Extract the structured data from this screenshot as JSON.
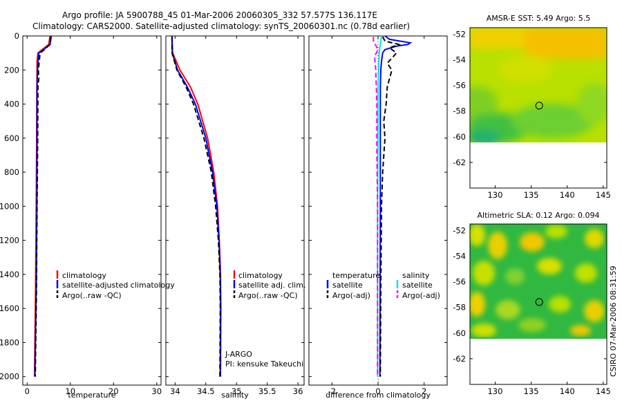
{
  "title_line1": "Argo profile: JA 5900788_45 01-Mar-2006 20060305_332 57.577S 136.117E",
  "title_line2": "Climatology: CARS2000. Satellite-adjusted climatology: synTS_20060301.nc (0.78d earlier)",
  "footer_note": "CSIRO 07-Mar-2006 08:31:59",
  "colors": {
    "climatology": "#ff0000",
    "satellite": "#0000ff",
    "argo": "#000000",
    "sal_satellite": "#00e5e5",
    "sal_argo": "#ff00ff"
  },
  "chart_data": [
    {
      "type": "line",
      "id": "temperature",
      "xlabel": "temperature",
      "ylabel": "",
      "xlim": [
        -1,
        31
      ],
      "ylim": [
        2050,
        0
      ],
      "xticks": [
        "0",
        "10",
        "20",
        "30"
      ],
      "yticks": [
        "0",
        "200",
        "400",
        "600",
        "800",
        "1000",
        "1200",
        "1400",
        "1600",
        "1800",
        "2000"
      ],
      "legend": [
        "climatology",
        "satellite-adjusted climatology",
        "Argo(..raw -QC)"
      ],
      "series": [
        {
          "name": "climatology",
          "depth": [
            0,
            50,
            80,
            100,
            150,
            200,
            300,
            600,
            1000,
            1500,
            2000
          ],
          "values": [
            5.3,
            5.0,
            3.5,
            2.5,
            2.3,
            2.3,
            2.25,
            2.2,
            2.1,
            1.95,
            1.7
          ]
        },
        {
          "name": "satellite-adjusted climatology",
          "depth": [
            0,
            50,
            80,
            100,
            150,
            200,
            300,
            600,
            1000,
            1500,
            2000
          ],
          "values": [
            5.6,
            5.3,
            3.8,
            2.7,
            2.5,
            2.4,
            2.3,
            2.3,
            2.25,
            2.1,
            1.8
          ]
        },
        {
          "name": "Argo(..raw -QC)",
          "depth": [
            5,
            50,
            80,
            100,
            150,
            200,
            250,
            300,
            600,
            1000,
            1500,
            2000
          ],
          "values": [
            5.4,
            5.3,
            4.0,
            3.0,
            2.8,
            2.6,
            2.7,
            2.5,
            2.45,
            2.3,
            2.15,
            1.9
          ]
        }
      ]
    },
    {
      "type": "line",
      "id": "salinity",
      "xlabel": "salinity",
      "ylabel": "",
      "xlim": [
        33.85,
        36.1
      ],
      "ylim": [
        2050,
        0
      ],
      "xticks": [
        "34",
        "34.5",
        "35",
        "35.5",
        "36"
      ],
      "legend": [
        "climatology",
        "satellite adj. clim.",
        "Argo(..raw -QC)"
      ],
      "annotations": [
        "J-ARGO",
        "PI: kensuke Takeuchi"
      ],
      "series": [
        {
          "name": "climatology",
          "depth": [
            0,
            100,
            200,
            300,
            400,
            600,
            800,
            1000,
            1200,
            1400,
            1600,
            2000
          ],
          "values": [
            33.95,
            33.96,
            34.08,
            34.25,
            34.37,
            34.53,
            34.63,
            34.69,
            34.72,
            34.74,
            34.745,
            34.74
          ]
        },
        {
          "name": "satellite adj. clim.",
          "depth": [
            0,
            100,
            200,
            300,
            400,
            600,
            800,
            1000,
            1200,
            1400,
            1600,
            2000
          ],
          "values": [
            33.95,
            33.955,
            34.04,
            34.2,
            34.33,
            34.5,
            34.61,
            34.68,
            34.715,
            34.735,
            34.74,
            34.735
          ]
        },
        {
          "name": "Argo(..raw -QC)",
          "depth": [
            5,
            100,
            200,
            300,
            400,
            600,
            800,
            1000,
            1200,
            1400,
            1600,
            2000
          ],
          "values": [
            33.95,
            33.95,
            34.03,
            34.18,
            34.3,
            34.47,
            34.59,
            34.66,
            34.705,
            34.73,
            34.735,
            34.73
          ]
        }
      ]
    },
    {
      "type": "line",
      "id": "difference",
      "xlabel": "difference from climatology",
      "ylabel": "",
      "xlim": [
        -3,
        3
      ],
      "ylim": [
        2050,
        0
      ],
      "xticks": [
        "-2",
        "0",
        "2"
      ],
      "legend_title_t": "temperature",
      "legend_title_s": "salinity",
      "legend": [
        "satellite",
        "Argo(-adj)",
        "satellite",
        "Argo(-adj)"
      ],
      "series": [
        {
          "name": "temperature satellite",
          "depth": [
            0,
            20,
            40,
            50,
            60,
            80,
            100,
            150,
            200,
            300,
            600,
            1000,
            1500,
            2000
          ],
          "values": [
            0.3,
            0.5,
            1.4,
            1.3,
            0.8,
            0.3,
            0.2,
            0.15,
            0.12,
            0.1,
            0.1,
            0.1,
            0.09,
            0.08
          ]
        },
        {
          "name": "temperature Argo(-adj)",
          "depth": [
            5,
            30,
            50,
            70,
            100,
            130,
            160,
            200,
            300,
            400,
            500,
            600,
            800,
            1000,
            1500,
            2000
          ],
          "values": [
            0.2,
            0.3,
            0.9,
            0.5,
            0.8,
            0.6,
            0.4,
            0.6,
            0.4,
            0.35,
            0.25,
            0.3,
            0.2,
            0.15,
            0.12,
            0.1
          ]
        },
        {
          "name": "salinity satellite",
          "depth": [
            0,
            50,
            100,
            300,
            600,
            1000,
            1500,
            2000
          ],
          "values": [
            0.15,
            0.1,
            0.05,
            0.0,
            0.0,
            -0.02,
            -0.02,
            -0.02
          ]
        },
        {
          "name": "salinity Argo(-adj)",
          "depth": [
            5,
            30,
            80,
            120,
            200,
            400,
            700,
            1000,
            1500,
            2000
          ],
          "values": [
            -0.2,
            -0.2,
            0.0,
            -0.15,
            -0.1,
            -0.05,
            -0.05,
            -0.02,
            -0.02,
            -0.02
          ]
        }
      ]
    },
    {
      "type": "heatmap",
      "id": "sst_map",
      "title": "AMSR-E SST: 5.49 Argo: 5.5",
      "xlim": [
        126.5,
        145.5
      ],
      "ylim": [
        -64,
        -51.5
      ],
      "xticks": [
        "130",
        "135",
        "140",
        "145"
      ],
      "yticks": [
        "-52",
        "-54",
        "-56",
        "-58",
        "-60",
        "-62"
      ],
      "data_extent_lat": [
        -60,
        -51.5
      ],
      "marker": {
        "lon": 136.117,
        "lat": -57.577
      }
    },
    {
      "type": "heatmap",
      "id": "sla_map",
      "title": "Altimetric SLA: 0.12 Argo: 0.094",
      "xlim": [
        126.5,
        145.5
      ],
      "ylim": [
        -64,
        -51.5
      ],
      "xticks": [
        "130",
        "135",
        "140",
        "145"
      ],
      "yticks": [
        "-52",
        "-54",
        "-56",
        "-58",
        "-60",
        "-62"
      ],
      "data_extent_lat": [
        -60,
        -51.5
      ],
      "marker": {
        "lon": 136.117,
        "lat": -57.577
      }
    }
  ]
}
